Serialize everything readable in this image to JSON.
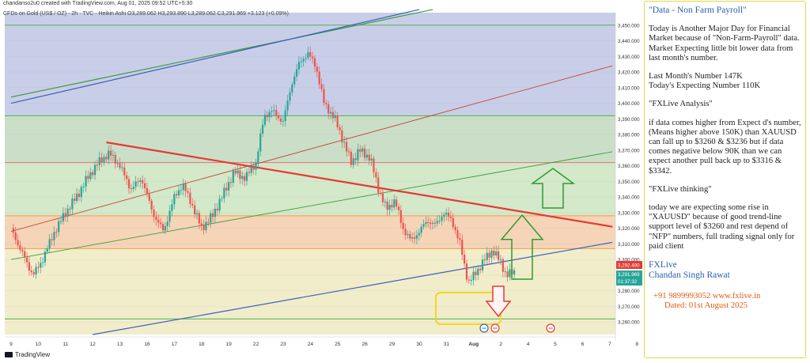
{
  "header": {
    "created_by": "chandanso2u0 created with TradingView.com, Aug 01, 2025 09:52 UTC+5:30",
    "symbol_line": "CFDs on Gold (US$ / OZ) · 2h · TVC · Heikin Ashi  O3,289.062  H3,293.890  L3,289.062  C3,291.969  +3.123 (+0.09%)"
  },
  "footer": {
    "brand": "TradingView"
  },
  "price_tags": {
    "current": "3,292.490",
    "ha_close": "3,291.969",
    "countdown": "01:37:32",
    "colors": {
      "current": "#e53935",
      "ha_close": "#26a69a"
    }
  },
  "colors": {
    "up_candle": "#26a69a",
    "down_candle": "#ef5350",
    "red_trendline": "#e53935",
    "green_arrow": "#2e9b2e",
    "red_arrow": "#e53935",
    "note_border": "#e6d44a",
    "note_title": "#2a5fb0",
    "contact": "#e05a10"
  },
  "chart_data": {
    "type": "candlestick",
    "chart_style": "Heikin Ashi",
    "timeframe": "2h",
    "x_tick_labels": [
      "9",
      "10",
      "11",
      "12",
      "13",
      "16",
      "17",
      "18",
      "19",
      "22",
      "23",
      "24",
      "25",
      "26",
      "29",
      "30",
      "31",
      "Aug",
      "2",
      "4",
      "5",
      "6",
      "7",
      "8"
    ],
    "y_ticks": [
      3260,
      3270,
      3280,
      3290,
      3300,
      3310,
      3320,
      3330,
      3340,
      3350,
      3360,
      3370,
      3380,
      3390,
      3400,
      3410,
      3420,
      3430,
      3440,
      3450
    ],
    "ylim": [
      3252,
      3458
    ],
    "price_path": [
      {
        "day": 0.0,
        "price": 3320
      },
      {
        "day": 0.3,
        "price": 3308
      },
      {
        "day": 0.8,
        "price": 3290
      },
      {
        "day": 1.1,
        "price": 3298
      },
      {
        "day": 1.6,
        "price": 3318
      },
      {
        "day": 2.0,
        "price": 3330
      },
      {
        "day": 2.4,
        "price": 3340
      },
      {
        "day": 2.8,
        "price": 3352
      },
      {
        "day": 3.2,
        "price": 3362
      },
      {
        "day": 3.6,
        "price": 3368
      },
      {
        "day": 4.0,
        "price": 3360
      },
      {
        "day": 4.4,
        "price": 3345
      },
      {
        "day": 4.8,
        "price": 3352
      },
      {
        "day": 5.2,
        "price": 3330
      },
      {
        "day": 5.6,
        "price": 3318
      },
      {
        "day": 6.0,
        "price": 3340
      },
      {
        "day": 6.3,
        "price": 3348
      },
      {
        "day": 6.6,
        "price": 3337
      },
      {
        "day": 7.0,
        "price": 3320
      },
      {
        "day": 7.4,
        "price": 3328
      },
      {
        "day": 7.8,
        "price": 3342
      },
      {
        "day": 8.2,
        "price": 3356
      },
      {
        "day": 8.6,
        "price": 3352
      },
      {
        "day": 9.0,
        "price": 3362
      },
      {
        "day": 9.3,
        "price": 3392
      },
      {
        "day": 9.6,
        "price": 3395
      },
      {
        "day": 10.0,
        "price": 3388
      },
      {
        "day": 10.3,
        "price": 3412
      },
      {
        "day": 10.6,
        "price": 3426
      },
      {
        "day": 10.9,
        "price": 3432
      },
      {
        "day": 11.2,
        "price": 3424
      },
      {
        "day": 11.5,
        "price": 3400
      },
      {
        "day": 11.9,
        "price": 3390
      },
      {
        "day": 12.2,
        "price": 3376
      },
      {
        "day": 12.5,
        "price": 3362
      },
      {
        "day": 12.8,
        "price": 3370
      },
      {
        "day": 13.2,
        "price": 3365
      },
      {
        "day": 13.5,
        "price": 3345
      },
      {
        "day": 13.8,
        "price": 3332
      },
      {
        "day": 14.1,
        "price": 3338
      },
      {
        "day": 14.4,
        "price": 3320
      },
      {
        "day": 14.7,
        "price": 3312
      },
      {
        "day": 15.0,
        "price": 3318
      },
      {
        "day": 15.3,
        "price": 3325
      },
      {
        "day": 15.6,
        "price": 3322
      },
      {
        "day": 15.9,
        "price": 3330
      },
      {
        "day": 16.2,
        "price": 3325
      },
      {
        "day": 16.5,
        "price": 3310
      },
      {
        "day": 16.8,
        "price": 3285
      },
      {
        "day": 17.1,
        "price": 3292
      },
      {
        "day": 17.4,
        "price": 3300
      },
      {
        "day": 17.7,
        "price": 3306
      },
      {
        "day": 18.0,
        "price": 3298
      },
      {
        "day": 18.2,
        "price": 3290
      },
      {
        "day": 18.5,
        "price": 3292
      }
    ]
  },
  "notes": {
    "title": "\"Data - Non Farm Payroll\"",
    "p1": "Today is Another Major Day for Financial Market because of \"Non-Farm-Payroll\" data. Market Expecting little bit lower data from last month's number.",
    "p2a": "Last Month's Number 147K",
    "p2b": "Today's Expecting Number 110K",
    "p3": "\"FXLive Analysis\"",
    "p4": "if data comes higher from Expect d's number, (Means higher above 150K) than XAUUSD can fall up to $3260 & $3236 but if data comes negative below 90K than we can expect another pull back up to $3316 & $3342.",
    "p5": "\"FXLive thinking\"",
    "p6": "today we are expecting some rise in \"XAUUSD\" because of good trend-line support level of $3260 and rest depend of \"NFP\" numbers, full trading signal only for paid client",
    "firm1": "FXLive",
    "firm2": "Chandan Singh Rawat",
    "contact1": "+91 9899993052      www.fxlive.in",
    "contact2": "Dated: 01st August 2025"
  }
}
